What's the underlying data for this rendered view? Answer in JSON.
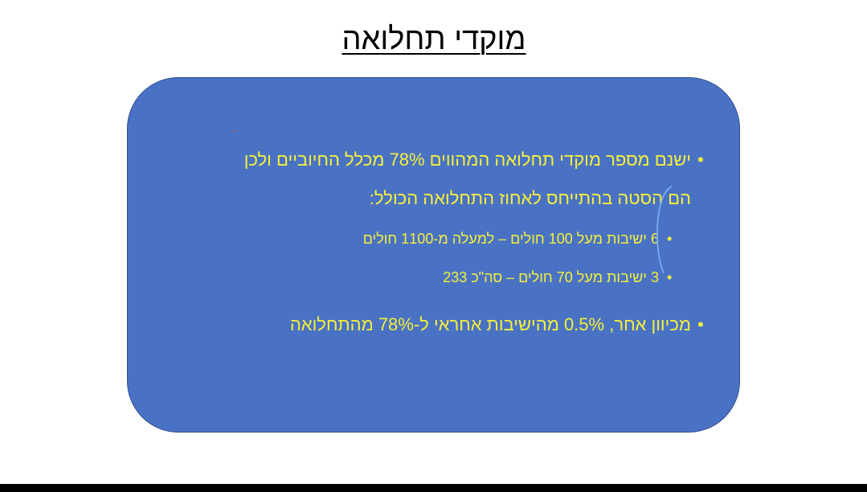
{
  "slide": {
    "title": "מוקדי תחלואה",
    "bullets": [
      {
        "line1": "ישנם מספר מוקדי תחלואה המהווים 78% מכלל החיוביים ולכן",
        "line2": "הם הסטה בהתייחס לאחוז התחלואה הכולל:",
        "sub": [
          "6 ישיבות מעל 100 חולים – למעלה מ-1100 חולים",
          "3 ישיבות מעל 70 חולים – סה\"כ 233"
        ]
      },
      {
        "line1": "מכיוון אחר, 0.5% מהישיבות אחראי ל-78% מהתחלואה"
      }
    ]
  },
  "colors": {
    "panel_fill": "#4a72c4",
    "text_color": "#f4f03a",
    "title_color": "#000000"
  }
}
